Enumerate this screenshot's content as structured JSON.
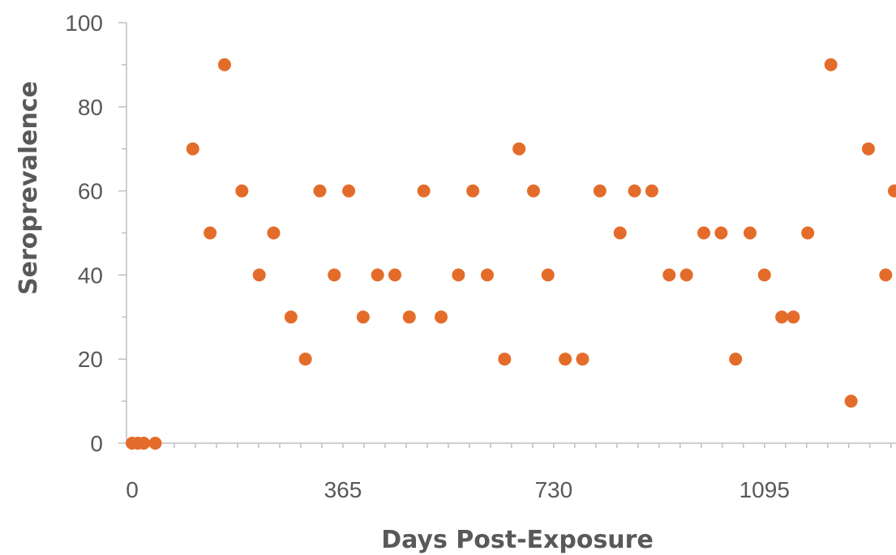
{
  "chart_data": {
    "type": "scatter",
    "xlabel": "Days Post-Exposure",
    "ylabel": "Seroprevalence",
    "xlim": [
      0,
      1320
    ],
    "ylim": [
      0,
      100
    ],
    "x_ticks": [
      0,
      365,
      730,
      1095
    ],
    "y_ticks": [
      0,
      20,
      40,
      60,
      80,
      100
    ],
    "grid": false,
    "marker_color": "#e46c2a",
    "axis_color": "#bfbfbf",
    "text_color": "#595959",
    "series": [
      {
        "points": [
          {
            "x": 0,
            "y": 0
          },
          {
            "x": 10,
            "y": 0
          },
          {
            "x": 20,
            "y": 0
          },
          {
            "x": 40,
            "y": 0
          },
          {
            "x": 105,
            "y": 70
          },
          {
            "x": 135,
            "y": 50
          },
          {
            "x": 160,
            "y": 90
          },
          {
            "x": 190,
            "y": 60
          },
          {
            "x": 220,
            "y": 40
          },
          {
            "x": 245,
            "y": 50
          },
          {
            "x": 275,
            "y": 30
          },
          {
            "x": 300,
            "y": 20
          },
          {
            "x": 325,
            "y": 60
          },
          {
            "x": 350,
            "y": 40
          },
          {
            "x": 375,
            "y": 60
          },
          {
            "x": 400,
            "y": 30
          },
          {
            "x": 425,
            "y": 40
          },
          {
            "x": 455,
            "y": 40
          },
          {
            "x": 480,
            "y": 30
          },
          {
            "x": 505,
            "y": 60
          },
          {
            "x": 535,
            "y": 30
          },
          {
            "x": 565,
            "y": 40
          },
          {
            "x": 590,
            "y": 60
          },
          {
            "x": 615,
            "y": 40
          },
          {
            "x": 645,
            "y": 20
          },
          {
            "x": 670,
            "y": 70
          },
          {
            "x": 695,
            "y": 60
          },
          {
            "x": 720,
            "y": 40
          },
          {
            "x": 750,
            "y": 20
          },
          {
            "x": 780,
            "y": 20
          },
          {
            "x": 810,
            "y": 60
          },
          {
            "x": 845,
            "y": 50
          },
          {
            "x": 870,
            "y": 60
          },
          {
            "x": 900,
            "y": 60
          },
          {
            "x": 930,
            "y": 40
          },
          {
            "x": 960,
            "y": 40
          },
          {
            "x": 990,
            "y": 50
          },
          {
            "x": 1020,
            "y": 50
          },
          {
            "x": 1045,
            "y": 20
          },
          {
            "x": 1070,
            "y": 50
          },
          {
            "x": 1095,
            "y": 40
          },
          {
            "x": 1125,
            "y": 30
          },
          {
            "x": 1145,
            "y": 30
          },
          {
            "x": 1170,
            "y": 50
          },
          {
            "x": 1210,
            "y": 90
          },
          {
            "x": 1245,
            "y": 10
          },
          {
            "x": 1275,
            "y": 70
          },
          {
            "x": 1305,
            "y": 40
          },
          {
            "x": 1320,
            "y": 60
          }
        ]
      }
    ]
  }
}
